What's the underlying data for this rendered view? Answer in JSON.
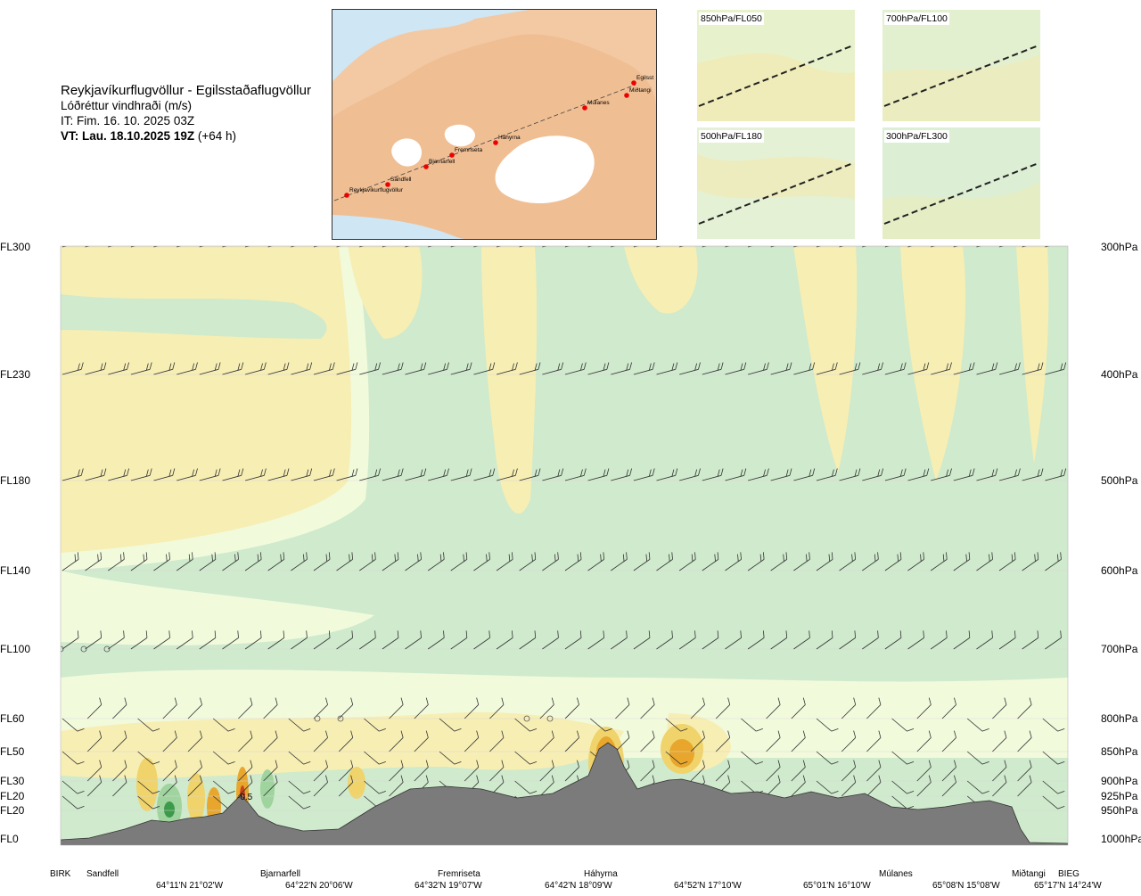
{
  "header": {
    "route": "Reykjavíkurflugvöllur - Egilsstaðaflugvöllur",
    "quantity": "Lóðréttur vindhraði (m/s)",
    "issue_time": "IT: Fim. 16. 10. 2025 03Z",
    "valid_label": "VT: Lau. 18.10.2025 19Z",
    "valid_offset": " (+64 h)"
  },
  "map": {
    "points": [
      "Reykjavíkurflugvöllur",
      "Sandfell",
      "Bjarnarfell",
      "Fremriseta",
      "Háhyrna",
      "Múlanes",
      "Miðtangi",
      "Egilsst"
    ]
  },
  "panels": [
    {
      "label": "850hPa/FL050"
    },
    {
      "label": "700hPa/FL100"
    },
    {
      "label": "500hPa/FL180"
    },
    {
      "label": "300hPa/FL300"
    }
  ],
  "chart_data": {
    "type": "heatmap",
    "y_left_labels": [
      "FL300",
      "FL230",
      "FL180",
      "FL140",
      "FL100",
      "FL60",
      "FL50",
      "FL30",
      "FL20",
      "FL20",
      "FL0"
    ],
    "y_right_labels": [
      "300hPa",
      "400hPa",
      "500hPa",
      "600hPa",
      "700hPa",
      "800hPa",
      "850hPa",
      "900hPa",
      "925hPa",
      "950hPa",
      "1000hPa"
    ],
    "pressure_levels_hpa": [
      300,
      400,
      500,
      600,
      700,
      800,
      850,
      900,
      925,
      950,
      1000
    ],
    "stations": [
      "BIRK",
      "Sandfell",
      "Bjarnarfell",
      "Fremriseta",
      "Háhyrna",
      "Múlanes",
      "Miðtangi",
      "BIEG"
    ],
    "coordinates": [
      "64°11'N 21°02'W",
      "64°22'N 20°06'W",
      "64°32'N 19°07'W",
      "64°42'N 18°09'W",
      "64°52'N 17°10'W",
      "65°01'N 16°10'W",
      "65°08'N 15°08'W",
      "65°17'N 14°24'W"
    ],
    "annotations": [
      "-0.5"
    ],
    "colors": {
      "down_strong": "#3d9a4a",
      "down": "#9fd49e",
      "down_weak": "#cfeacc",
      "neutral": "#f2fadc",
      "up_weak": "#f7eeb4",
      "up": "#f0d36a",
      "up_strong": "#e8a62c",
      "up_extreme": "#c8441c",
      "terrain": "#7b7b7b"
    }
  }
}
